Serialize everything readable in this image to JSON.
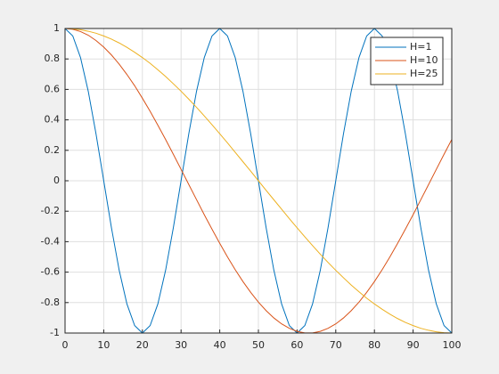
{
  "chart_data": {
    "type": "line",
    "x": [
      0,
      2,
      4,
      6,
      8,
      10,
      12,
      14,
      16,
      18,
      20,
      22,
      24,
      26,
      28,
      30,
      32,
      34,
      36,
      38,
      40,
      42,
      44,
      46,
      48,
      50,
      52,
      54,
      56,
      58,
      60,
      62,
      64,
      66,
      68,
      70,
      72,
      74,
      76,
      78,
      80,
      82,
      84,
      86,
      88,
      90,
      92,
      94,
      96,
      98,
      100
    ],
    "series": [
      {
        "name": "H=1",
        "color": "#0072bd",
        "values": [
          1,
          0.951,
          0.809,
          0.588,
          0.309,
          0,
          -0.309,
          -0.588,
          -0.809,
          -0.951,
          -1,
          -0.951,
          -0.809,
          -0.588,
          -0.309,
          0,
          0.309,
          0.588,
          0.809,
          0.951,
          1,
          0.951,
          0.809,
          0.588,
          0.309,
          0,
          -0.309,
          -0.588,
          -0.809,
          -0.951,
          -1,
          -0.951,
          -0.809,
          -0.588,
          -0.309,
          0,
          0.309,
          0.588,
          0.809,
          0.951,
          1,
          0.951,
          0.809,
          0.588,
          0.309,
          0,
          -0.309,
          -0.588,
          -0.809,
          -0.951,
          -1
        ]
      },
      {
        "name": "H=10",
        "color": "#d95319",
        "values": [
          1,
          0.995,
          0.98,
          0.956,
          0.921,
          0.878,
          0.826,
          0.766,
          0.698,
          0.624,
          0.542,
          0.456,
          0.365,
          0.271,
          0.174,
          0.075,
          -0.025,
          -0.124,
          -0.223,
          -0.318,
          -0.411,
          -0.5,
          -0.584,
          -0.662,
          -0.733,
          -0.797,
          -0.853,
          -0.901,
          -0.94,
          -0.969,
          -0.989,
          -0.999,
          -0.999,
          -0.989,
          -0.969,
          -0.94,
          -0.901,
          -0.853,
          -0.797,
          -0.733,
          -0.662,
          -0.584,
          -0.5,
          -0.411,
          -0.318,
          -0.223,
          -0.124,
          -0.025,
          0.075,
          0.174,
          0.271
        ]
      },
      {
        "name": "H=25",
        "color": "#edb120",
        "values": [
          1,
          0.998,
          0.992,
          0.982,
          0.969,
          0.951,
          0.93,
          0.905,
          0.876,
          0.844,
          0.809,
          0.771,
          0.729,
          0.685,
          0.637,
          0.588,
          0.536,
          0.482,
          0.426,
          0.368,
          0.309,
          0.249,
          0.187,
          0.125,
          0.063,
          0,
          -0.063,
          -0.125,
          -0.187,
          -0.249,
          -0.309,
          -0.368,
          -0.426,
          -0.482,
          -0.536,
          -0.588,
          -0.637,
          -0.685,
          -0.729,
          -0.771,
          -0.809,
          -0.844,
          -0.876,
          -0.905,
          -0.93,
          -0.951,
          -0.969,
          -0.982,
          -0.992,
          -0.998,
          -1
        ]
      }
    ],
    "xlim": [
      0,
      100
    ],
    "xticks": [
      0,
      10,
      20,
      30,
      40,
      50,
      60,
      70,
      80,
      90,
      100
    ],
    "ylim": [
      -1,
      1
    ],
    "yticks": [
      -1,
      -0.8,
      -0.6,
      -0.4,
      -0.2,
      0,
      0.2,
      0.4,
      0.6,
      0.8,
      1
    ],
    "grid": true,
    "legend_position": "top-right"
  }
}
